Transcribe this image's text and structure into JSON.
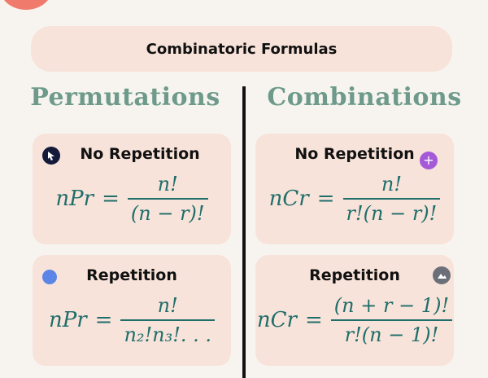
{
  "header": {
    "title": "Combinatoric Formulas"
  },
  "columns": [
    {
      "heading": "Permutations",
      "cards": [
        {
          "label": "No Repetition",
          "lhs": "nPr",
          "eq": "=",
          "num": "n!",
          "den": "(n − r)!"
        },
        {
          "label": "Repetition",
          "lhs": "nPr",
          "eq": "=",
          "num": "n!",
          "den": "n₂!n₃!. . ."
        }
      ]
    },
    {
      "heading": "Combinations",
      "cards": [
        {
          "label": "No Repetition",
          "lhs": "nCr",
          "eq": "=",
          "num": "n!",
          "den": "r!(n − r)!"
        },
        {
          "label": "Repetition",
          "lhs": "nCr",
          "eq": "=",
          "num": "(n + r − 1)!",
          "den": "r!(n − 1)!"
        }
      ]
    }
  ]
}
